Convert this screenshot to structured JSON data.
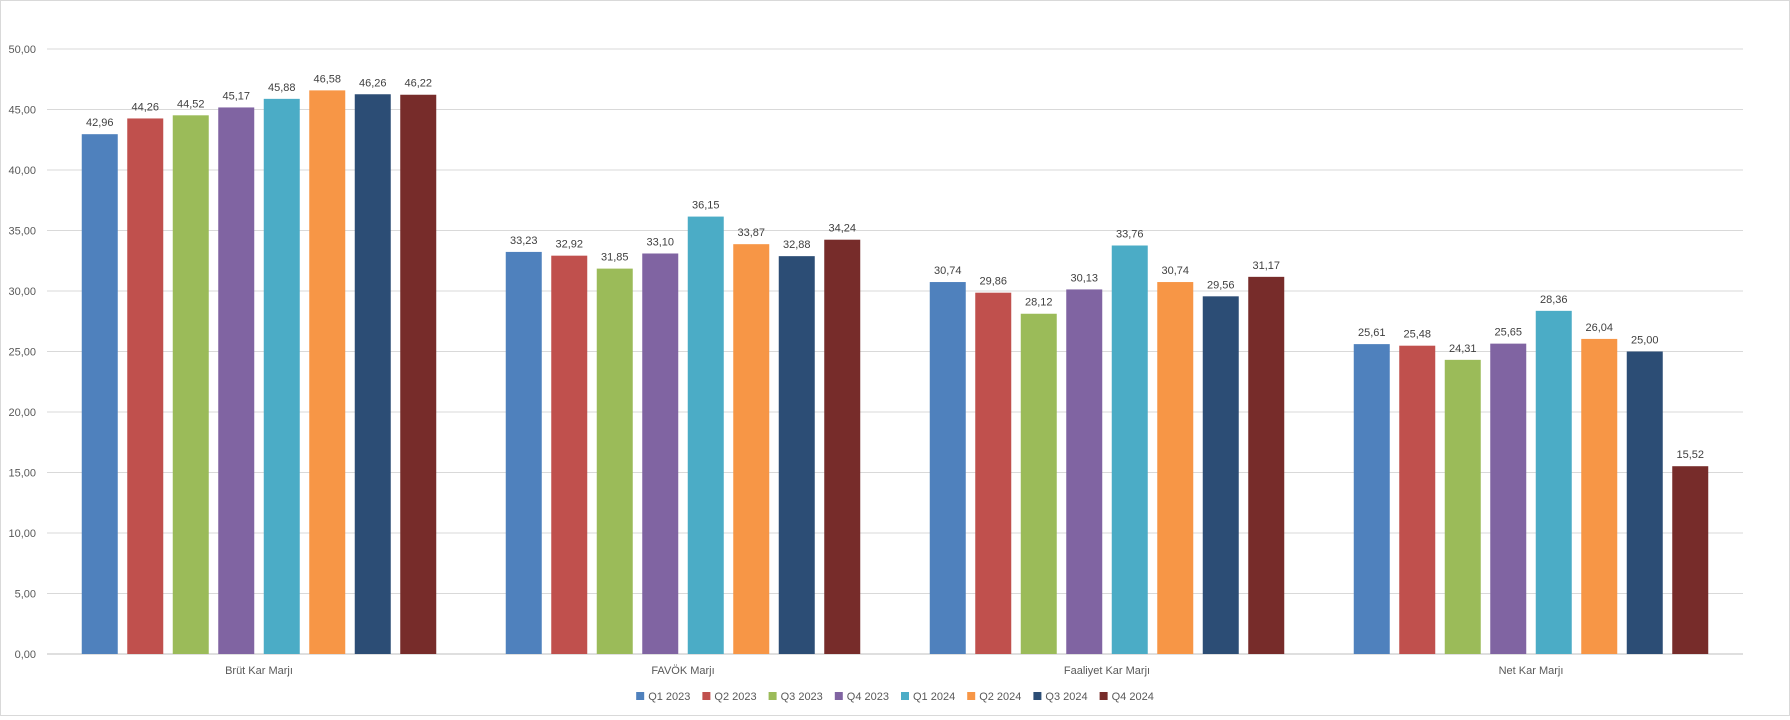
{
  "chart_data": {
    "type": "bar",
    "title": "",
    "xlabel": "",
    "ylabel": "",
    "categories": [
      "Brüt Kar Marjı",
      "FAVÖK Marjı",
      "Faaliyet Kar Marjı",
      "Net Kar Marjı"
    ],
    "ylim": [
      0,
      50
    ],
    "y_ticks": [
      "0,00",
      "5,00",
      "10,00",
      "15,00",
      "20,00",
      "25,00",
      "30,00",
      "35,00",
      "40,00",
      "45,00",
      "50,00"
    ],
    "grid": true,
    "legend_position": "bottom",
    "series": [
      {
        "name": "Q1 2023",
        "color": "#4F81BD",
        "values": [
          42.96,
          33.23,
          30.74,
          25.61
        ],
        "labels": [
          "42,96",
          "33,23",
          "30,74",
          "25,61"
        ]
      },
      {
        "name": "Q2 2023",
        "color": "#C0504D",
        "values": [
          44.26,
          32.92,
          29.86,
          25.48
        ],
        "labels": [
          "44,26",
          "32,92",
          "29,86",
          "25,48"
        ]
      },
      {
        "name": "Q3 2023",
        "color": "#9BBB59",
        "values": [
          44.52,
          31.85,
          28.12,
          24.31
        ],
        "labels": [
          "44,52",
          "31,85",
          "28,12",
          "24,31"
        ]
      },
      {
        "name": "Q4 2023",
        "color": "#8064A2",
        "values": [
          45.17,
          33.1,
          30.13,
          25.65
        ],
        "labels": [
          "45,17",
          "33,10",
          "30,13",
          "25,65"
        ]
      },
      {
        "name": "Q1 2024",
        "color": "#4BACC6",
        "values": [
          45.88,
          36.15,
          33.76,
          28.36
        ],
        "labels": [
          "45,88",
          "36,15",
          "33,76",
          "28,36"
        ]
      },
      {
        "name": "Q2 2024",
        "color": "#F79646",
        "values": [
          46.58,
          33.87,
          30.74,
          26.04
        ],
        "labels": [
          "46,58",
          "33,87",
          "30,74",
          "26,04"
        ]
      },
      {
        "name": "Q3 2024",
        "color": "#2C4D75",
        "values": [
          46.26,
          32.88,
          29.56,
          25.0
        ],
        "labels": [
          "46,26",
          "32,88",
          "29,56",
          "25,00"
        ]
      },
      {
        "name": "Q4 2024",
        "color": "#772C2A",
        "values": [
          46.22,
          34.24,
          31.17,
          15.52
        ],
        "labels": [
          "46,22",
          "34,24",
          "31,17",
          "15,52"
        ]
      }
    ]
  }
}
